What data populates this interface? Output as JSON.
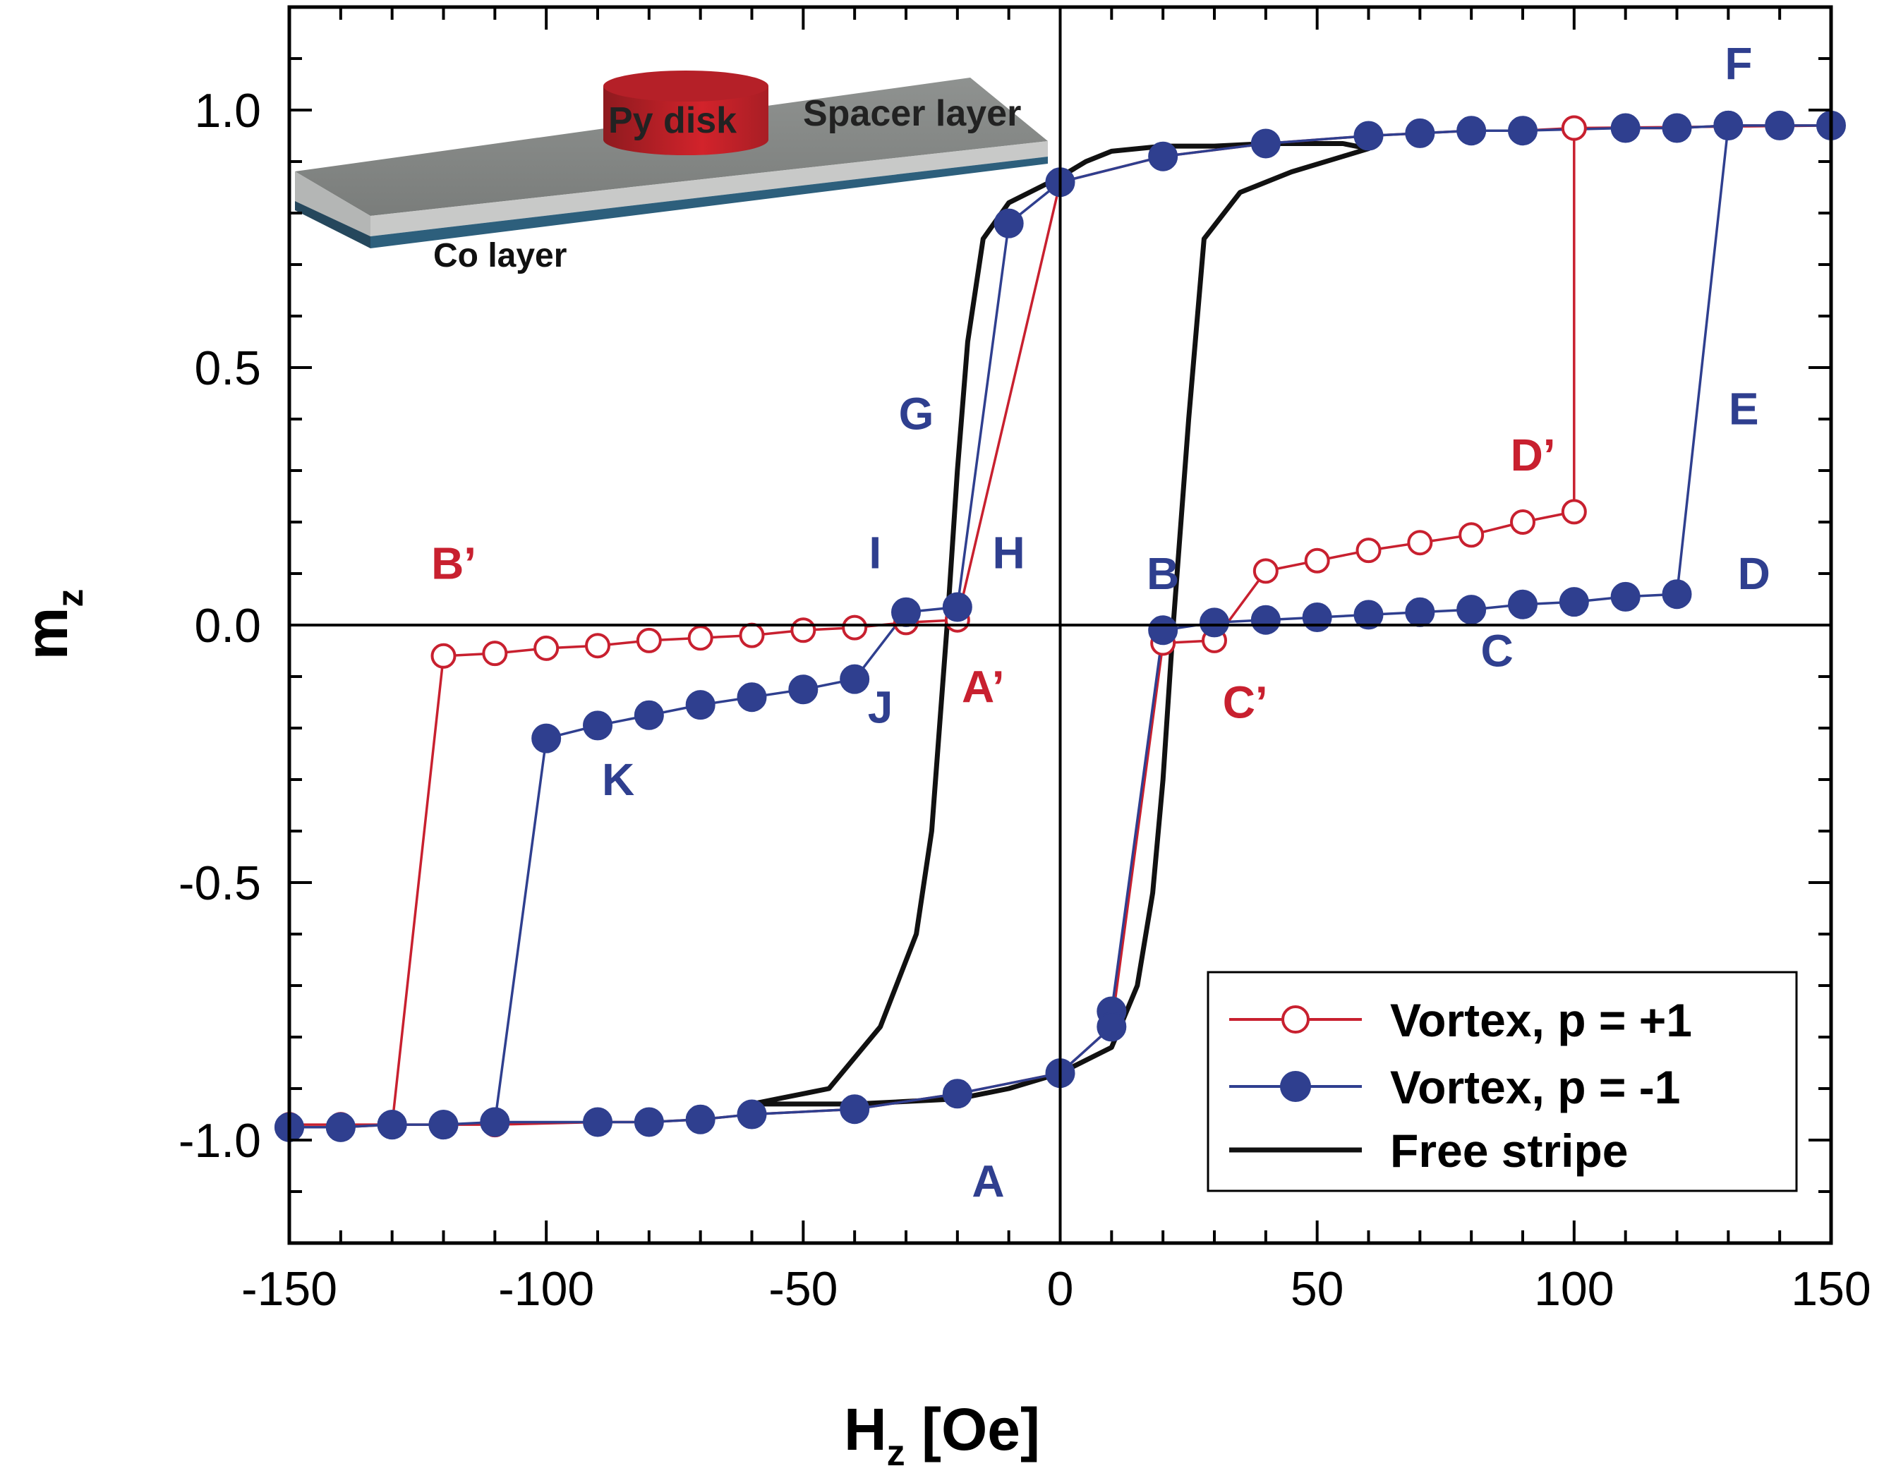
{
  "chart_data": {
    "type": "line",
    "xlabel_main": "H",
    "xlabel_sub": "z",
    "xlabel_unit": " [Oe]",
    "ylabel_main": "m",
    "ylabel_sub": "z",
    "xlim": [
      -150,
      150
    ],
    "ylim": [
      -1.2,
      1.2
    ],
    "xticks": [
      -150,
      -100,
      -50,
      0,
      50,
      100,
      150
    ],
    "xtick_labels": [
      "-150",
      "-100",
      "-50",
      "0",
      "50",
      "100",
      "150"
    ],
    "yticks": [
      -1.0,
      -0.5,
      0.0,
      0.5,
      1.0
    ],
    "ytick_labels": [
      "-1.0",
      "-0.5",
      "0.0",
      "0.5",
      "1.0"
    ],
    "grid": false,
    "legend_position": "bottom-right",
    "colors": {
      "red": "#c8202f",
      "blue": "#2f3f8f",
      "black": "#111111"
    },
    "series": [
      {
        "name": "Vortex, p = +1",
        "style": "open-circle",
        "color": "#c8202f",
        "points": [
          [
            -150,
            -0.97
          ],
          [
            -140,
            -0.97
          ],
          [
            -130,
            -0.97
          ],
          [
            -120,
            -0.06
          ],
          [
            -110,
            -0.055
          ],
          [
            -100,
            -0.045
          ],
          [
            -90,
            -0.04
          ],
          [
            -80,
            -0.03
          ],
          [
            -70,
            -0.025
          ],
          [
            -60,
            -0.02
          ],
          [
            -50,
            -0.01
          ],
          [
            -40,
            -0.005
          ],
          [
            -30,
            0.005
          ],
          [
            -20,
            0.01
          ],
          [
            0,
            0.86
          ],
          [
            20,
            0.91
          ],
          [
            40,
            0.935
          ],
          [
            60,
            0.95
          ],
          [
            70,
            0.955
          ],
          [
            80,
            0.96
          ],
          [
            90,
            0.96
          ],
          [
            100,
            0.965
          ],
          [
            110,
            0.965
          ],
          [
            120,
            0.965
          ],
          [
            130,
            0.97
          ],
          [
            140,
            0.97
          ],
          [
            150,
            0.97
          ],
          [
            100,
            0.965
          ],
          [
            100,
            0.22
          ],
          [
            90,
            0.2
          ],
          [
            80,
            0.175
          ],
          [
            70,
            0.16
          ],
          [
            60,
            0.145
          ],
          [
            50,
            0.125
          ],
          [
            40,
            0.105
          ],
          [
            30,
            -0.03
          ],
          [
            20,
            -0.035
          ],
          [
            10,
            -0.78
          ],
          [
            0,
            -0.87
          ],
          [
            -20,
            -0.91
          ],
          [
            -40,
            -0.94
          ],
          [
            -60,
            -0.95
          ],
          [
            -70,
            -0.96
          ],
          [
            -80,
            -0.965
          ],
          [
            -90,
            -0.965
          ],
          [
            -110,
            -0.97
          ],
          [
            -120,
            -0.97
          ],
          [
            -130,
            -0.97
          ],
          [
            -140,
            -0.975
          ],
          [
            -150,
            -0.975
          ]
        ]
      },
      {
        "name": "Vortex, p = -1",
        "style": "filled-circle",
        "color": "#2f3f8f",
        "points": [
          [
            -150,
            -0.975
          ],
          [
            -140,
            -0.975
          ],
          [
            -130,
            -0.97
          ],
          [
            -120,
            -0.97
          ],
          [
            -110,
            -0.965
          ],
          [
            -100,
            -0.22
          ],
          [
            -90,
            -0.195
          ],
          [
            -80,
            -0.175
          ],
          [
            -70,
            -0.155
          ],
          [
            -60,
            -0.14
          ],
          [
            -50,
            -0.125
          ],
          [
            -40,
            -0.105
          ],
          [
            -30,
            0.025
          ],
          [
            -20,
            0.035
          ],
          [
            -10,
            0.78
          ],
          [
            0,
            0.86
          ],
          [
            20,
            0.91
          ],
          [
            40,
            0.935
          ],
          [
            60,
            0.95
          ],
          [
            70,
            0.955
          ],
          [
            80,
            0.96
          ],
          [
            90,
            0.96
          ],
          [
            110,
            0.965
          ],
          [
            120,
            0.965
          ],
          [
            130,
            0.97
          ],
          [
            140,
            0.97
          ],
          [
            150,
            0.97
          ],
          [
            130,
            0.97
          ],
          [
            120,
            0.06
          ],
          [
            110,
            0.055
          ],
          [
            100,
            0.045
          ],
          [
            90,
            0.04
          ],
          [
            80,
            0.03
          ],
          [
            70,
            0.025
          ],
          [
            60,
            0.02
          ],
          [
            50,
            0.015
          ],
          [
            40,
            0.01
          ],
          [
            30,
            0.005
          ],
          [
            20,
            -0.01
          ],
          [
            10,
            -0.75
          ],
          [
            10,
            -0.78
          ],
          [
            0,
            -0.87
          ],
          [
            -20,
            -0.91
          ],
          [
            -40,
            -0.94
          ],
          [
            -60,
            -0.95
          ],
          [
            -70,
            -0.96
          ],
          [
            -80,
            -0.965
          ],
          [
            -90,
            -0.965
          ],
          [
            -110,
            -0.965
          ],
          [
            -120,
            -0.97
          ],
          [
            -130,
            -0.97
          ],
          [
            -140,
            -0.975
          ],
          [
            -150,
            -0.975
          ]
        ]
      },
      {
        "name": "Free stripe",
        "style": "line",
        "color": "#111111",
        "points": [
          [
            -60,
            -0.93
          ],
          [
            -50,
            -0.93
          ],
          [
            -40,
            -0.93
          ],
          [
            -30,
            -0.925
          ],
          [
            -20,
            -0.92
          ],
          [
            -10,
            -0.9
          ],
          [
            0,
            -0.87
          ],
          [
            10,
            -0.82
          ],
          [
            15,
            -0.7
          ],
          [
            18,
            -0.52
          ],
          [
            20,
            -0.3
          ],
          [
            22,
            0.0
          ],
          [
            25,
            0.4
          ],
          [
            28,
            0.75
          ],
          [
            35,
            0.84
          ],
          [
            45,
            0.88
          ],
          [
            55,
            0.91
          ],
          [
            60,
            0.925
          ],
          [
            60,
            0.925
          ],
          [
            55,
            0.935
          ],
          [
            40,
            0.935
          ],
          [
            30,
            0.93
          ],
          [
            20,
            0.93
          ],
          [
            10,
            0.92
          ],
          [
            5,
            0.9
          ],
          [
            0,
            0.87
          ],
          [
            -10,
            0.82
          ],
          [
            -15,
            0.75
          ],
          [
            -18,
            0.55
          ],
          [
            -20,
            0.3
          ],
          [
            -22,
            0.0
          ],
          [
            -25,
            -0.4
          ],
          [
            -28,
            -0.6
          ],
          [
            -35,
            -0.78
          ],
          [
            -45,
            -0.9
          ],
          [
            -55,
            -0.92
          ],
          [
            -60,
            -0.93
          ]
        ]
      }
    ],
    "annotations": [
      {
        "text": "F",
        "x": 132,
        "y": 1.06,
        "color": "#2f3f8f"
      },
      {
        "text": "E",
        "x": 133,
        "y": 0.39,
        "color": "#2f3f8f"
      },
      {
        "text": "D’",
        "x": 92,
        "y": 0.3,
        "color": "#c8202f"
      },
      {
        "text": "D",
        "x": 135,
        "y": 0.07,
        "color": "#2f3f8f"
      },
      {
        "text": "C",
        "x": 85,
        "y": -0.08,
        "color": "#2f3f8f"
      },
      {
        "text": "C’",
        "x": 36,
        "y": -0.18,
        "color": "#c8202f"
      },
      {
        "text": "B",
        "x": 20,
        "y": 0.07,
        "color": "#2f3f8f"
      },
      {
        "text": "B’",
        "x": -118,
        "y": 0.09,
        "color": "#c8202f"
      },
      {
        "text": "G",
        "x": -28,
        "y": 0.38,
        "color": "#2f3f8f"
      },
      {
        "text": "I",
        "x": -36,
        "y": 0.11,
        "color": "#2f3f8f"
      },
      {
        "text": "H",
        "x": -10,
        "y": 0.11,
        "color": "#2f3f8f"
      },
      {
        "text": "A’",
        "x": -15,
        "y": -0.15,
        "color": "#c8202f"
      },
      {
        "text": "J",
        "x": -35,
        "y": -0.19,
        "color": "#2f3f8f"
      },
      {
        "text": "K",
        "x": -86,
        "y": -0.33,
        "color": "#2f3f8f"
      },
      {
        "text": "A",
        "x": -14,
        "y": -1.11,
        "color": "#2f3f8f"
      }
    ]
  },
  "inset": {
    "disk_label": "Py disk",
    "spacer_label": "Spacer layer",
    "co_label": "Co layer"
  }
}
